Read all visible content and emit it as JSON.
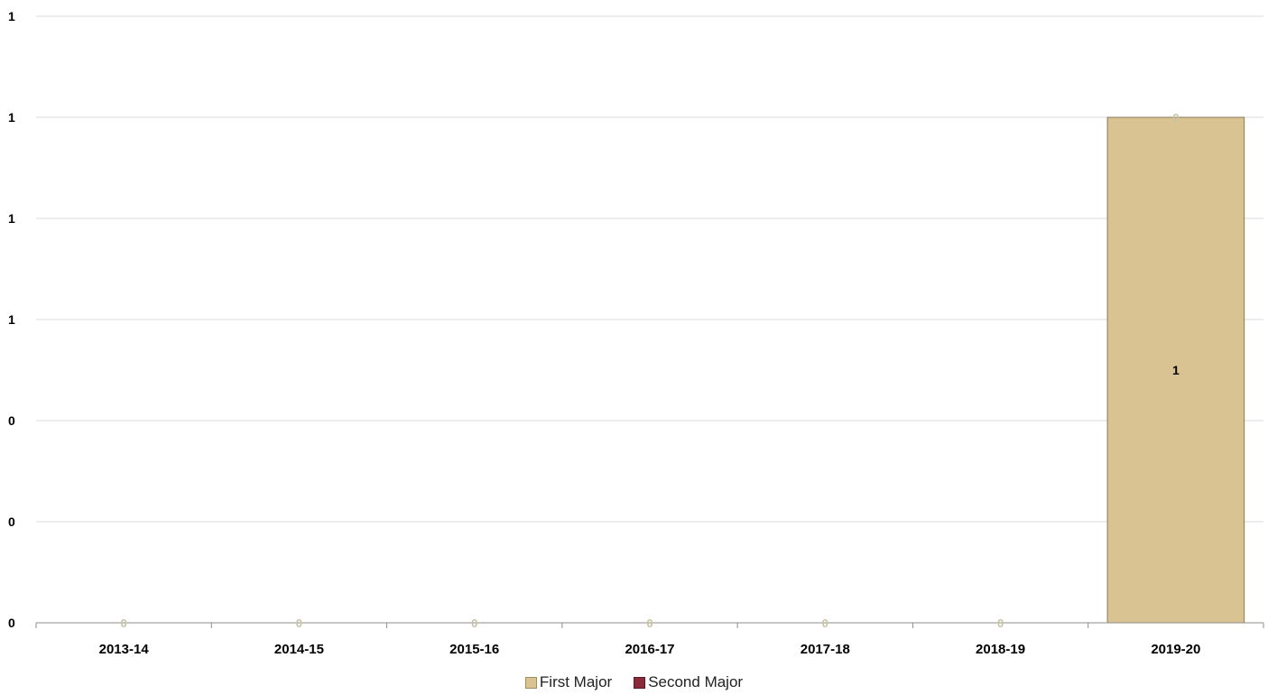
{
  "chart_data": {
    "type": "bar",
    "categories": [
      "2013-14",
      "2014-15",
      "2015-16",
      "2016-17",
      "2017-18",
      "2018-19",
      "2019-20"
    ],
    "series": [
      {
        "name": "First Major",
        "values": [
          0,
          0,
          0,
          0,
          0,
          0,
          1
        ],
        "color": "#d9c393",
        "data_labels": [
          "0",
          "0",
          "0",
          "0",
          "0",
          "0",
          "1"
        ]
      },
      {
        "name": "Second Major",
        "values": [
          0,
          0,
          0,
          0,
          0,
          0,
          0
        ],
        "color": "#8b2a3a",
        "data_labels": [
          "0",
          "0",
          "0",
          "0",
          "0",
          "0",
          "0"
        ]
      }
    ],
    "y_tick_labels": [
      "0",
      "0",
      "0",
      "1",
      "1",
      "1",
      "1"
    ],
    "ylim": [
      0,
      1.2
    ],
    "grid": true,
    "legend_position": "bottom",
    "title": "",
    "xlabel": "",
    "ylabel": ""
  }
}
